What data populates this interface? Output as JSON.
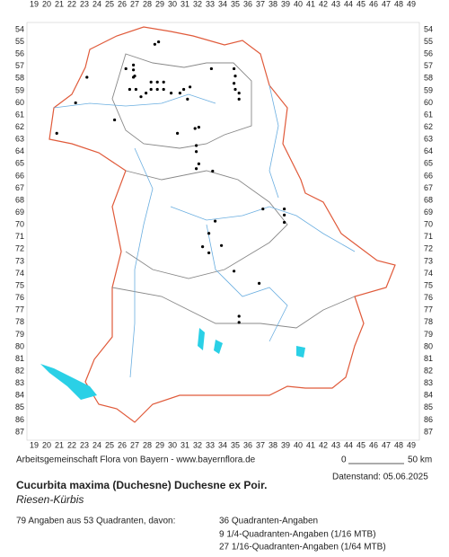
{
  "map": {
    "columns": [
      19,
      20,
      21,
      22,
      23,
      24,
      25,
      26,
      27,
      28,
      29,
      30,
      31,
      32,
      33,
      34,
      35,
      36,
      37,
      38,
      39,
      40,
      41,
      42,
      43,
      44,
      45,
      46,
      47,
      48,
      49
    ],
    "rows": [
      54,
      55,
      56,
      57,
      58,
      59,
      60,
      61,
      62,
      63,
      64,
      65,
      66,
      67,
      68,
      69,
      70,
      71,
      72,
      73,
      74,
      75,
      76,
      77,
      78,
      79,
      80,
      81,
      82,
      83,
      84,
      85,
      86,
      87
    ],
    "records": [
      [
        28.9,
        55.0
      ],
      [
        28.6,
        55.2
      ],
      [
        26.3,
        57.2
      ],
      [
        26.9,
        56.9
      ],
      [
        26.9,
        57.3
      ],
      [
        27.0,
        57.8
      ],
      [
        23.2,
        57.9
      ],
      [
        33.1,
        57.2
      ],
      [
        34.9,
        57.2
      ],
      [
        35.0,
        57.8
      ],
      [
        26.9,
        57.9
      ],
      [
        26.6,
        58.9
      ],
      [
        27.1,
        58.9
      ],
      [
        28.3,
        58.3
      ],
      [
        28.8,
        58.3
      ],
      [
        29.3,
        58.3
      ],
      [
        29.3,
        58.9
      ],
      [
        28.8,
        58.9
      ],
      [
        28.3,
        58.9
      ],
      [
        27.9,
        59.2
      ],
      [
        27.5,
        59.5
      ],
      [
        29.9,
        59.2
      ],
      [
        30.6,
        59.2
      ],
      [
        30.9,
        58.9
      ],
      [
        31.2,
        59.7
      ],
      [
        31.4,
        58.7
      ],
      [
        34.9,
        58.4
      ],
      [
        35.0,
        58.9
      ],
      [
        35.3,
        59.2
      ],
      [
        35.3,
        59.7
      ],
      [
        22.3,
        60.0
      ],
      [
        25.4,
        61.4
      ],
      [
        20.8,
        62.5
      ],
      [
        30.4,
        62.5
      ],
      [
        31.8,
        62.1
      ],
      [
        32.1,
        62.0
      ],
      [
        31.9,
        63.5
      ],
      [
        31.9,
        64.0
      ],
      [
        32.1,
        65.0
      ],
      [
        31.9,
        65.4
      ],
      [
        33.2,
        65.6
      ],
      [
        37.2,
        68.7
      ],
      [
        38.9,
        68.7
      ],
      [
        38.9,
        69.2
      ],
      [
        38.9,
        69.8
      ],
      [
        33.4,
        69.7
      ],
      [
        32.9,
        70.7
      ],
      [
        33.9,
        71.7
      ],
      [
        32.4,
        71.8
      ],
      [
        32.9,
        72.3
      ],
      [
        34.9,
        73.8
      ],
      [
        36.9,
        74.8
      ],
      [
        35.3,
        77.5
      ],
      [
        35.3,
        78.0
      ]
    ]
  },
  "credits": "Arbeitsgemeinschaft Flora von Bayern - www.bayernflora.de",
  "scale": {
    "start": "0",
    "end": "50 km"
  },
  "date": "Datenstand: 05.06.2025",
  "title": "Cucurbita maxima (Duchesne) Duchesne ex Poir.",
  "subtitle": "Riesen-Kürbis",
  "summary": "79 Angaben aus 53 Quadranten, davon:",
  "details": [
    "36 Quadranten-Angaben",
    "9 1/4-Quadranten-Angaben (1/16 MTB)",
    "27 1/16-Quadranten-Angaben (1/64 MTB)"
  ]
}
